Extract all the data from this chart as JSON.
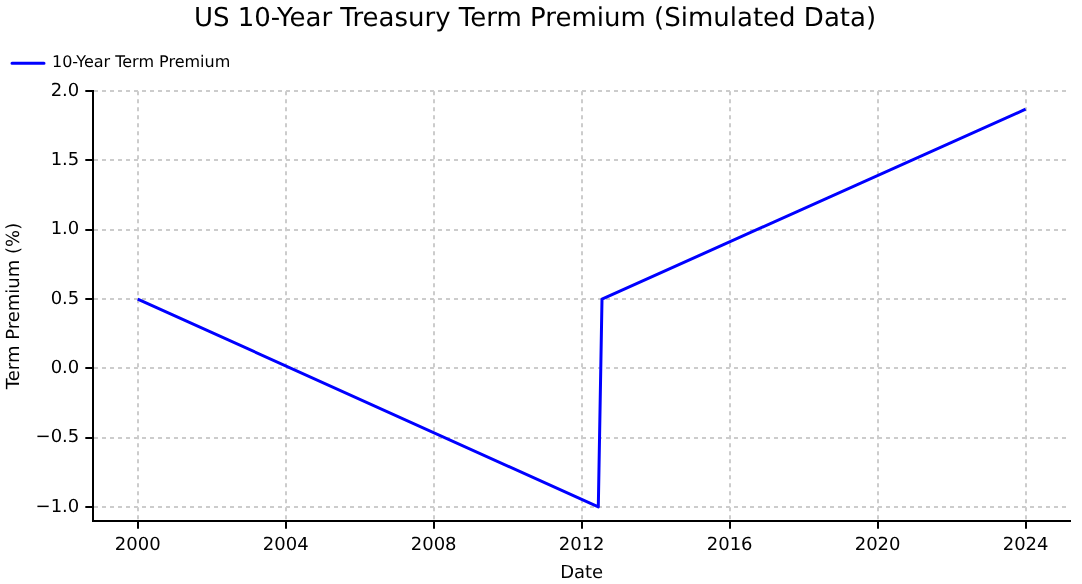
{
  "chart_data": {
    "type": "line",
    "title": "US 10-Year Treasury Term Premium (Simulated Data)",
    "xlabel": "Date",
    "ylabel": "Term Premium (%)",
    "x": [
      2000,
      2012.45,
      2012.55,
      2024
    ],
    "series": [
      {
        "name": "10-Year Term Premium",
        "color": "#0000ff",
        "values": [
          0.5,
          -1.0,
          0.5,
          1.87
        ]
      }
    ],
    "xlim": [
      1998.8,
      2025.2
    ],
    "xticks": [
      2000,
      2004,
      2008,
      2012,
      2016,
      2020,
      2024
    ],
    "ylim": [
      -1.1,
      2.0
    ],
    "yticks": [
      {
        "value": -1,
        "label": "−1.0"
      },
      {
        "value": -0.5,
        "label": "−0.5"
      },
      {
        "value": 0,
        "label": "0.0"
      },
      {
        "value": 0.5,
        "label": "0.5"
      },
      {
        "value": 1,
        "label": "1.0"
      },
      {
        "value": 1.5,
        "label": "1.5"
      },
      {
        "value": 2,
        "label": "2.0"
      }
    ],
    "grid": true,
    "legend": "top left",
    "marker": "none",
    "line_style": "solid"
  }
}
